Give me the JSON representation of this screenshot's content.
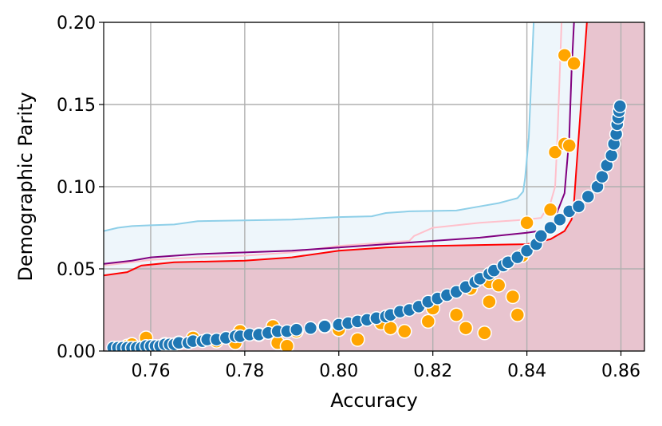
{
  "chart_data": {
    "type": "scatter",
    "title": "",
    "xlabel": "Accuracy",
    "ylabel": "Demographic Parity",
    "xlim": [
      0.75,
      0.865
    ],
    "ylim": [
      0.0,
      0.2
    ],
    "xticks": [
      0.76,
      0.78,
      0.8,
      0.82,
      0.84,
      0.86
    ],
    "xtick_labels": [
      "0.76",
      "0.78",
      "0.80",
      "0.82",
      "0.84",
      "0.86"
    ],
    "yticks": [
      0.0,
      0.05,
      0.1,
      0.15,
      0.2
    ],
    "ytick_labels": [
      "0.00",
      "0.05",
      "0.10",
      "0.15",
      "0.20"
    ],
    "grid": true,
    "colors": {
      "fill_pink": "#e8c4cf",
      "fill_lightblue": "#eef6fb",
      "line_skyblue": "#8ecfe8",
      "line_pink": "#ffc0cb",
      "line_purple": "#800080",
      "line_red": "#ff0000",
      "orange": "#ffa500",
      "blue": "#1f77b4"
    },
    "lines": [
      {
        "color": "#8ecfe8",
        "points": [
          [
            0.75,
            0.073
          ],
          [
            0.753,
            0.075
          ],
          [
            0.756,
            0.076
          ],
          [
            0.76,
            0.0765
          ],
          [
            0.765,
            0.077
          ],
          [
            0.77,
            0.079
          ],
          [
            0.78,
            0.0795
          ],
          [
            0.79,
            0.08
          ],
          [
            0.8,
            0.0815
          ],
          [
            0.807,
            0.082
          ],
          [
            0.81,
            0.084
          ],
          [
            0.815,
            0.085
          ],
          [
            0.825,
            0.0855
          ],
          [
            0.83,
            0.088
          ],
          [
            0.834,
            0.09
          ],
          [
            0.838,
            0.093
          ],
          [
            0.8392,
            0.097
          ],
          [
            0.8396,
            0.105
          ],
          [
            0.8404,
            0.13
          ],
          [
            0.841,
            0.17
          ],
          [
            0.8416,
            0.21
          ]
        ]
      },
      {
        "color": "#ffc0cb",
        "points": [
          [
            0.75,
            0.052
          ],
          [
            0.756,
            0.054
          ],
          [
            0.76,
            0.0555
          ],
          [
            0.77,
            0.057
          ],
          [
            0.78,
            0.058
          ],
          [
            0.79,
            0.06
          ],
          [
            0.8,
            0.064
          ],
          [
            0.81,
            0.066
          ],
          [
            0.815,
            0.067
          ],
          [
            0.816,
            0.07
          ],
          [
            0.82,
            0.075
          ],
          [
            0.83,
            0.078
          ],
          [
            0.84,
            0.08
          ],
          [
            0.843,
            0.081
          ],
          [
            0.845,
            0.09
          ],
          [
            0.846,
            0.1
          ],
          [
            0.8465,
            0.13
          ],
          [
            0.847,
            0.17
          ],
          [
            0.8475,
            0.21
          ]
        ]
      },
      {
        "color": "#800080",
        "points": [
          [
            0.75,
            0.053
          ],
          [
            0.756,
            0.055
          ],
          [
            0.76,
            0.057
          ],
          [
            0.77,
            0.059
          ],
          [
            0.78,
            0.06
          ],
          [
            0.79,
            0.061
          ],
          [
            0.8,
            0.063
          ],
          [
            0.81,
            0.065
          ],
          [
            0.82,
            0.067
          ],
          [
            0.83,
            0.069
          ],
          [
            0.84,
            0.072
          ],
          [
            0.845,
            0.074
          ],
          [
            0.848,
            0.096
          ],
          [
            0.849,
            0.13
          ],
          [
            0.8495,
            0.17
          ],
          [
            0.8502,
            0.21
          ]
        ]
      },
      {
        "color": "#ff0000",
        "points": [
          [
            0.75,
            0.046
          ],
          [
            0.755,
            0.048
          ],
          [
            0.758,
            0.052
          ],
          [
            0.765,
            0.054
          ],
          [
            0.78,
            0.055
          ],
          [
            0.79,
            0.057
          ],
          [
            0.8,
            0.061
          ],
          [
            0.81,
            0.063
          ],
          [
            0.82,
            0.064
          ],
          [
            0.83,
            0.0645
          ],
          [
            0.84,
            0.065
          ],
          [
            0.845,
            0.068
          ],
          [
            0.848,
            0.073
          ],
          [
            0.8495,
            0.08
          ],
          [
            0.85,
            0.09
          ],
          [
            0.8505,
            0.11
          ],
          [
            0.851,
            0.13
          ],
          [
            0.8515,
            0.15
          ],
          [
            0.852,
            0.17
          ],
          [
            0.853,
            0.21
          ]
        ]
      }
    ],
    "series": [
      {
        "color": "#ffa500",
        "points": [
          [
            0.755,
            0.003
          ],
          [
            0.756,
            0.004
          ],
          [
            0.759,
            0.008
          ],
          [
            0.763,
            0.004
          ],
          [
            0.766,
            0.005
          ],
          [
            0.769,
            0.008
          ],
          [
            0.774,
            0.006
          ],
          [
            0.778,
            0.005
          ],
          [
            0.779,
            0.012
          ],
          [
            0.783,
            0.01
          ],
          [
            0.786,
            0.015
          ],
          [
            0.787,
            0.005
          ],
          [
            0.789,
            0.003
          ],
          [
            0.791,
            0.012
          ],
          [
            0.797,
            0.015
          ],
          [
            0.8,
            0.013
          ],
          [
            0.804,
            0.007
          ],
          [
            0.809,
            0.017
          ],
          [
            0.811,
            0.014
          ],
          [
            0.814,
            0.012
          ],
          [
            0.819,
            0.018
          ],
          [
            0.82,
            0.026
          ],
          [
            0.825,
            0.022
          ],
          [
            0.827,
            0.014
          ],
          [
            0.828,
            0.038
          ],
          [
            0.831,
            0.011
          ],
          [
            0.832,
            0.03
          ],
          [
            0.832,
            0.042
          ],
          [
            0.834,
            0.04
          ],
          [
            0.837,
            0.033
          ],
          [
            0.838,
            0.022
          ],
          [
            0.839,
            0.058
          ],
          [
            0.84,
            0.078
          ],
          [
            0.845,
            0.086
          ],
          [
            0.846,
            0.121
          ],
          [
            0.848,
            0.126
          ],
          [
            0.848,
            0.18
          ],
          [
            0.849,
            0.125
          ],
          [
            0.85,
            0.175
          ]
        ]
      },
      {
        "color": "#1f77b4",
        "points": [
          [
            0.752,
            0.002
          ],
          [
            0.753,
            0.002
          ],
          [
            0.754,
            0.002
          ],
          [
            0.755,
            0.002
          ],
          [
            0.756,
            0.002
          ],
          [
            0.757,
            0.002
          ],
          [
            0.758,
            0.002
          ],
          [
            0.759,
            0.003
          ],
          [
            0.76,
            0.003
          ],
          [
            0.761,
            0.003
          ],
          [
            0.762,
            0.003
          ],
          [
            0.763,
            0.004
          ],
          [
            0.764,
            0.004
          ],
          [
            0.765,
            0.004
          ],
          [
            0.766,
            0.005
          ],
          [
            0.768,
            0.005
          ],
          [
            0.769,
            0.006
          ],
          [
            0.771,
            0.006
          ],
          [
            0.772,
            0.007
          ],
          [
            0.774,
            0.007
          ],
          [
            0.776,
            0.008
          ],
          [
            0.778,
            0.009
          ],
          [
            0.779,
            0.009
          ],
          [
            0.781,
            0.01
          ],
          [
            0.783,
            0.01
          ],
          [
            0.785,
            0.011
          ],
          [
            0.787,
            0.012
          ],
          [
            0.789,
            0.012
          ],
          [
            0.791,
            0.013
          ],
          [
            0.794,
            0.014
          ],
          [
            0.797,
            0.015
          ],
          [
            0.8,
            0.016
          ],
          [
            0.802,
            0.017
          ],
          [
            0.804,
            0.018
          ],
          [
            0.806,
            0.019
          ],
          [
            0.808,
            0.02
          ],
          [
            0.81,
            0.021
          ],
          [
            0.811,
            0.022
          ],
          [
            0.813,
            0.024
          ],
          [
            0.815,
            0.025
          ],
          [
            0.817,
            0.027
          ],
          [
            0.819,
            0.03
          ],
          [
            0.821,
            0.032
          ],
          [
            0.823,
            0.034
          ],
          [
            0.825,
            0.036
          ],
          [
            0.827,
            0.039
          ],
          [
            0.829,
            0.042
          ],
          [
            0.83,
            0.044
          ],
          [
            0.832,
            0.047
          ],
          [
            0.833,
            0.049
          ],
          [
            0.835,
            0.052
          ],
          [
            0.836,
            0.054
          ],
          [
            0.838,
            0.057
          ],
          [
            0.84,
            0.061
          ],
          [
            0.842,
            0.065
          ],
          [
            0.843,
            0.07
          ],
          [
            0.845,
            0.075
          ],
          [
            0.847,
            0.08
          ],
          [
            0.849,
            0.085
          ],
          [
            0.851,
            0.088
          ],
          [
            0.853,
            0.094
          ],
          [
            0.855,
            0.1
          ],
          [
            0.856,
            0.106
          ],
          [
            0.857,
            0.113
          ],
          [
            0.858,
            0.119
          ],
          [
            0.8585,
            0.126
          ],
          [
            0.859,
            0.132
          ],
          [
            0.8592,
            0.138
          ],
          [
            0.8594,
            0.142
          ],
          [
            0.8596,
            0.146
          ],
          [
            0.8598,
            0.149
          ]
        ]
      }
    ]
  }
}
